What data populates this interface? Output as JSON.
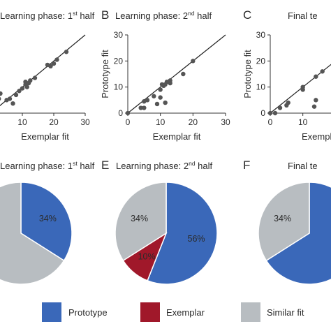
{
  "colors": {
    "prototype": "#3a68b9",
    "exemplar": "#a0182a",
    "similar": "#b8bdc1",
    "point": "#555555",
    "line": "#222222"
  },
  "legend": [
    {
      "key": "prototype",
      "label": "Prototype"
    },
    {
      "key": "exemplar",
      "label": "Exemplar"
    },
    {
      "key": "similar",
      "label": "Similar fit"
    }
  ],
  "chart_data": [
    {
      "id": "A",
      "letter": "",
      "type": "scatter",
      "title": "Learning phase: 1",
      "title_sup": "st",
      "title_tail": " half",
      "xlabel": "Exemplar fit",
      "ylabel": "",
      "xlim": [
        0,
        30
      ],
      "ylim": [
        0,
        30
      ],
      "x_ticks": [
        "10",
        "20",
        "30"
      ],
      "y_ticks": [],
      "reference_line": "identity",
      "points": [
        {
          "x": 1.5,
          "y": 6.5
        },
        {
          "x": 2.5,
          "y": 5.5
        },
        {
          "x": 3,
          "y": 7.5
        },
        {
          "x": 5,
          "y": 5
        },
        {
          "x": 6,
          "y": 5.5
        },
        {
          "x": 7,
          "y": 3.7
        },
        {
          "x": 8,
          "y": 7
        },
        {
          "x": 9,
          "y": 8.5
        },
        {
          "x": 10,
          "y": 9.5
        },
        {
          "x": 11,
          "y": 11
        },
        {
          "x": 11.5,
          "y": 10
        },
        {
          "x": 12,
          "y": 11.5
        },
        {
          "x": 11,
          "y": 12
        },
        {
          "x": 12.5,
          "y": 12.5
        },
        {
          "x": 14,
          "y": 13.5
        },
        {
          "x": 18,
          "y": 18.5
        },
        {
          "x": 19,
          "y": 18
        },
        {
          "x": 20,
          "y": 19
        },
        {
          "x": 21,
          "y": 20.5
        },
        {
          "x": 24,
          "y": 23.5
        }
      ]
    },
    {
      "id": "B",
      "letter": "B",
      "type": "scatter",
      "title": "Learning phase: 2",
      "title_sup": "nd",
      "title_tail": " half",
      "xlabel": "Exemplar fit",
      "ylabel": "Prototype fit",
      "xlim": [
        0,
        30
      ],
      "ylim": [
        0,
        30
      ],
      "x_ticks": [
        "0",
        "10",
        "20",
        "30"
      ],
      "y_ticks": [
        "0",
        "10",
        "20",
        "30"
      ],
      "reference_line": "identity",
      "points": [
        {
          "x": 0,
          "y": 0
        },
        {
          "x": 4,
          "y": 2
        },
        {
          "x": 5,
          "y": 2
        },
        {
          "x": 5,
          "y": 4.5
        },
        {
          "x": 6,
          "y": 5
        },
        {
          "x": 8,
          "y": 6.5
        },
        {
          "x": 9,
          "y": 3.5
        },
        {
          "x": 10,
          "y": 6
        },
        {
          "x": 10,
          "y": 9
        },
        {
          "x": 10.5,
          "y": 11
        },
        {
          "x": 11,
          "y": 10.5
        },
        {
          "x": 11.5,
          "y": 11
        },
        {
          "x": 12,
          "y": 12
        },
        {
          "x": 11.5,
          "y": 4
        },
        {
          "x": 13,
          "y": 11.5
        },
        {
          "x": 13,
          "y": 12.5
        },
        {
          "x": 17,
          "y": 15
        },
        {
          "x": 20,
          "y": 20
        }
      ]
    },
    {
      "id": "C",
      "letter": "C",
      "type": "scatter",
      "title": "Final te",
      "title_sup": "",
      "title_tail": "",
      "xlabel": "Exempla",
      "ylabel": "Prototype fit",
      "xlim": [
        0,
        30
      ],
      "ylim": [
        0,
        30
      ],
      "x_ticks": [
        "0",
        "10"
      ],
      "y_ticks": [
        "0",
        "10",
        "20",
        "30"
      ],
      "reference_line": "identity",
      "points": [
        {
          "x": 0,
          "y": 0
        },
        {
          "x": 1.5,
          "y": 0
        },
        {
          "x": 3,
          "y": 2
        },
        {
          "x": 5,
          "y": 3
        },
        {
          "x": 5.5,
          "y": 4
        },
        {
          "x": 10,
          "y": 9
        },
        {
          "x": 10,
          "y": 10
        },
        {
          "x": 13.5,
          "y": 2.5
        },
        {
          "x": 14,
          "y": 5
        },
        {
          "x": 14,
          "y": 14
        },
        {
          "x": 16,
          "y": 16
        }
      ]
    },
    {
      "id": "D",
      "letter": "",
      "type": "pie",
      "title": "Learning phase: 1",
      "title_sup": "st",
      "title_tail": " half",
      "slices": [
        {
          "key": "prototype",
          "value": 34,
          "label": "34%"
        },
        {
          "key": "similar",
          "value": 66,
          "label": ""
        }
      ]
    },
    {
      "id": "E",
      "letter": "E",
      "type": "pie",
      "title": "Learning phase: 2",
      "title_sup": "nd",
      "title_tail": " half",
      "slices": [
        {
          "key": "prototype",
          "value": 56,
          "label": "56%"
        },
        {
          "key": "exemplar",
          "value": 10,
          "label": "10%"
        },
        {
          "key": "similar",
          "value": 34,
          "label": "34%"
        }
      ]
    },
    {
      "id": "F",
      "letter": "F",
      "type": "pie",
      "title": "Final te",
      "title_sup": "",
      "title_tail": "",
      "slices": [
        {
          "key": "prototype",
          "value": 66,
          "label": ""
        },
        {
          "key": "similar",
          "value": 34,
          "label": "34%"
        }
      ]
    }
  ]
}
